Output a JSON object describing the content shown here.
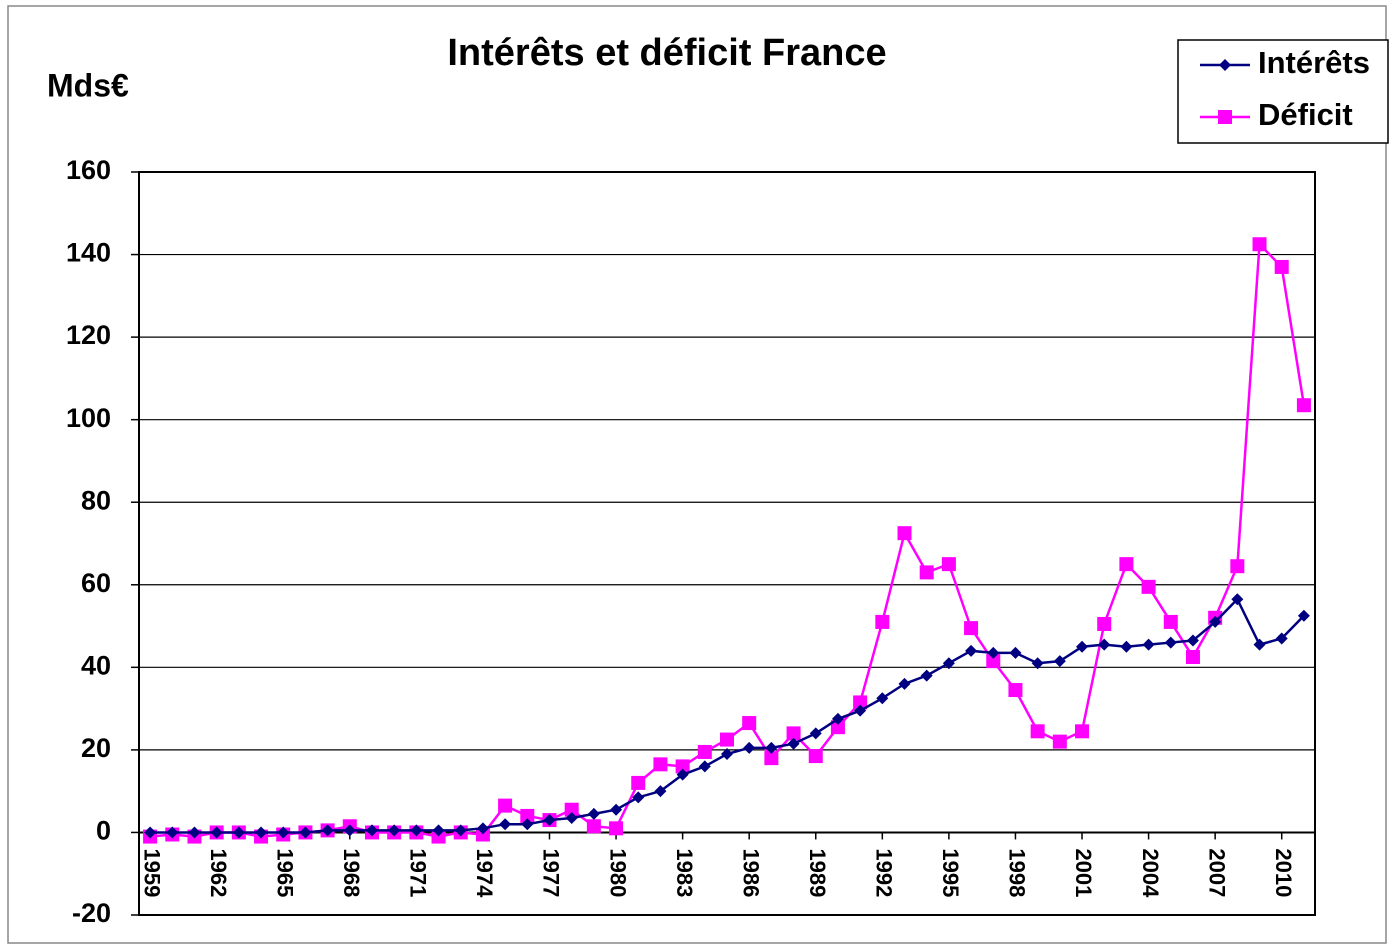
{
  "chart_data": {
    "type": "line",
    "title": "Intérêts et déficit France",
    "y_label": "Mds€",
    "x": [
      1959,
      1960,
      1961,
      1962,
      1963,
      1964,
      1965,
      1966,
      1967,
      1968,
      1969,
      1970,
      1971,
      1972,
      1973,
      1974,
      1975,
      1976,
      1977,
      1978,
      1979,
      1980,
      1981,
      1982,
      1983,
      1984,
      1985,
      1986,
      1987,
      1988,
      1989,
      1990,
      1991,
      1992,
      1993,
      1994,
      1995,
      1996,
      1997,
      1998,
      1999,
      2000,
      2001,
      2002,
      2003,
      2004,
      2005,
      2006,
      2007,
      2008,
      2009,
      2010,
      2011
    ],
    "xlim": [
      1958.5,
      2011.5
    ],
    "xticks": [
      1959,
      1962,
      1965,
      1968,
      1971,
      1974,
      1977,
      1980,
      1983,
      1986,
      1989,
      1992,
      1995,
      1998,
      2001,
      2004,
      2007,
      2010
    ],
    "ylim": [
      -20,
      160
    ],
    "yticks": [
      -20,
      0,
      20,
      40,
      60,
      80,
      100,
      120,
      140,
      160
    ],
    "grid": true,
    "legend": "top-right",
    "series": [
      {
        "name": "Intérêts",
        "color": "#000080",
        "marker": "diamond",
        "values": [
          0,
          0,
          0,
          0,
          0,
          0,
          0,
          0,
          0.5,
          0.5,
          0.5,
          0.5,
          0.5,
          0.5,
          0.5,
          1,
          2,
          2,
          3,
          3.5,
          4.5,
          5.5,
          8.5,
          10,
          14,
          16,
          19,
          20.5,
          20.5,
          21.5,
          24,
          27.5,
          29.5,
          32.5,
          36,
          38,
          41,
          44,
          43.5,
          43.5,
          41,
          41.5,
          45,
          45.5,
          45,
          45.5,
          46,
          46.5,
          51,
          56.5,
          45.5,
          47,
          52.5
        ]
      },
      {
        "name": "Déficit",
        "color": "#ff00ff",
        "marker": "square",
        "values": [
          -1,
          -0.5,
          -1,
          0,
          0,
          -1,
          -0.5,
          0,
          0.5,
          1.5,
          0,
          0,
          0,
          -1,
          0,
          -0.5,
          6.5,
          4,
          3,
          5.5,
          1.5,
          1,
          12,
          16.5,
          16,
          19.5,
          22.5,
          26.5,
          18,
          24,
          18.5,
          25.5,
          31.5,
          51,
          72.5,
          63,
          65,
          49.5,
          41.5,
          34.5,
          24.5,
          22,
          24.5,
          50.5,
          65,
          59.5,
          51,
          42.5,
          52,
          64.5,
          142.5,
          137,
          103.5
        ]
      }
    ]
  }
}
